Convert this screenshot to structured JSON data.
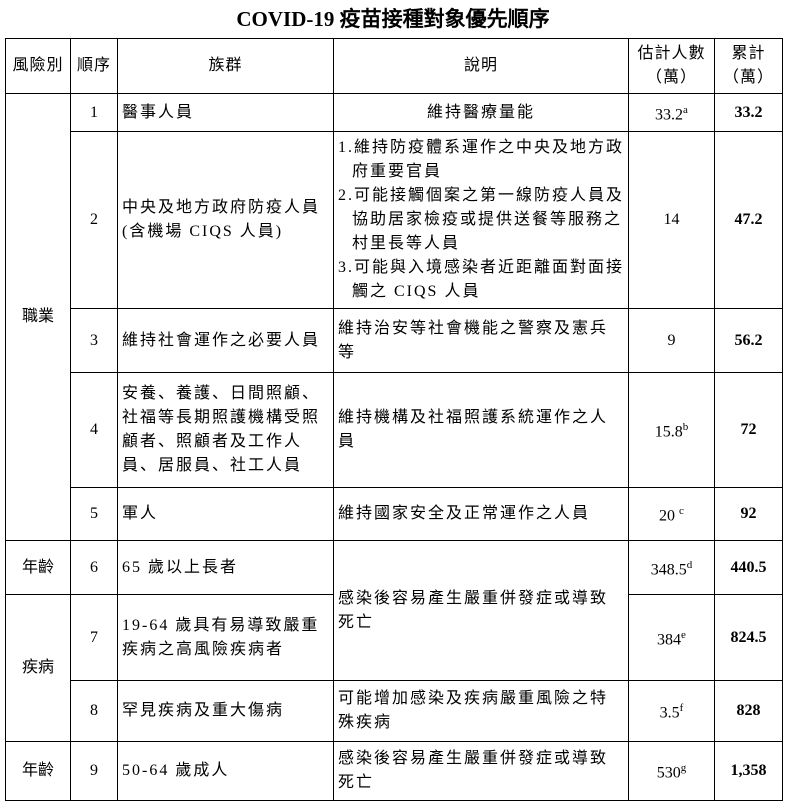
{
  "title": "COVID-19 疫苗接種對象優先順序",
  "headers": {
    "risk": "風險別",
    "order": "順序",
    "group": "族群",
    "description": "說明",
    "estimate": "估計人數（萬）",
    "cumulative": "累計（萬）"
  },
  "risk_categories": {
    "occupation": "職業",
    "age_1": "年齡",
    "disease": "疾病",
    "age_2": "年齡"
  },
  "rows": [
    {
      "order": "1",
      "group": "醫事人員",
      "description": "維持醫療量能",
      "estimate": "33.2",
      "note": "a",
      "cumulative": "33.2"
    },
    {
      "order": "2",
      "group": "中央及地方政府防疫人員(含機場 CIQS 人員)",
      "description_items": [
        "1.維持防疫體系運作之中央及地方政府重要官員",
        "2.可能接觸個案之第一線防疫人員及協助居家檢疫或提供送餐等服務之村里長等人員",
        "3.可能與入境感染者近距離面對面接觸之 CIQS 人員"
      ],
      "estimate": "14",
      "note": "",
      "cumulative": "47.2"
    },
    {
      "order": "3",
      "group": "維持社會運作之必要人員",
      "description": "維持治安等社會機能之警察及憲兵等",
      "estimate": "9",
      "note": "",
      "cumulative": "56.2"
    },
    {
      "order": "4",
      "group": "安養、養護、日間照顧、社福等長期照護機構受照顧者、照顧者及工作人員、居服員、社工人員",
      "description": "維持機構及社福照護系統運作之人員",
      "estimate": "15.8",
      "note": "b",
      "cumulative": "72"
    },
    {
      "order": "5",
      "group": "軍人",
      "description": "維持國家安全及正常運作之人員",
      "estimate": "20",
      "note": "c",
      "cumulative": "92"
    },
    {
      "order": "6",
      "group": "65 歲以上長者",
      "description": "感染後容易產生嚴重併發症或導致死亡",
      "estimate": "348.5",
      "note": "d",
      "cumulative": "440.5"
    },
    {
      "order": "7",
      "group": "19-64 歲具有易導致嚴重疾病之高風險疾病者",
      "estimate": "384",
      "note": "e",
      "cumulative": "824.5"
    },
    {
      "order": "8",
      "group": "罕見疾病及重大傷病",
      "description": "可能增加感染及疾病嚴重風險之特殊疾病",
      "estimate": "3.5",
      "note": "f",
      "cumulative": "828"
    },
    {
      "order": "9",
      "group": "50-64 歲成人",
      "description": "感染後容易產生嚴重併發症或導致死亡",
      "estimate": "530",
      "note": "g",
      "cumulative": "1,358"
    }
  ]
}
